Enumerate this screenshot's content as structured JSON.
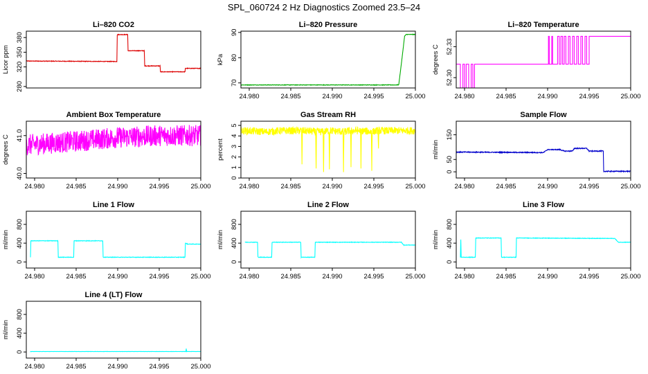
{
  "figure": {
    "title": "SPL_060724  2 Hz Diagnostics Zoomed 23.5–24"
  },
  "chart_data": [
    {
      "id": "co2",
      "type": "line",
      "title": "Li–820 CO2",
      "ylabel": "Licor ppm",
      "color": "#dd0000",
      "xlim": [
        24.979,
        25.0
      ],
      "ylim": [
        277,
        393
      ],
      "yticks": [
        280,
        320,
        350,
        380
      ],
      "ytick_labels": [
        "280",
        "320",
        "350",
        "380"
      ],
      "xticks": [],
      "xtick_labels": [],
      "series": [
        {
          "noise": 0.6,
          "jitter": 0.0,
          "x": [
            24.979,
            24.9899,
            24.98995,
            24.9912,
            24.99125,
            24.9932,
            24.99325,
            24.9951,
            24.99515,
            24.9981,
            24.99815,
            25.0
          ],
          "y": [
            332,
            331,
            386,
            386,
            353,
            353,
            322,
            322,
            310,
            310,
            317,
            317
          ]
        }
      ]
    },
    {
      "id": "pressure",
      "type": "line",
      "title": "Li–820 Pressure",
      "ylabel": "kPa",
      "color": "#00aa00",
      "xlim": [
        24.979,
        25.0
      ],
      "ylim": [
        68,
        90.5
      ],
      "yticks": [
        70,
        80,
        90
      ],
      "ytick_labels": [
        "70",
        "80",
        "90"
      ],
      "xticks": [
        24.98,
        24.985,
        24.99,
        24.995,
        25.0
      ],
      "xtick_labels": [
        "24.980",
        "24.985",
        "24.990",
        "24.995",
        "25.000"
      ],
      "series": [
        {
          "noise": 0.1,
          "jitter": 0.0,
          "x": [
            24.979,
            24.9979,
            24.998,
            24.9984,
            24.9987,
            24.9989,
            25.0
          ],
          "y": [
            69.2,
            69.2,
            69.3,
            80,
            88.5,
            89.2,
            89.2
          ]
        }
      ]
    },
    {
      "id": "temperature",
      "type": "line",
      "title": "Li–820 Temperature",
      "ylabel": "degrees C",
      "color": "#ff00ff",
      "xlim": [
        24.979,
        25.0
      ],
      "ylim": [
        52.29,
        52.345
      ],
      "yticks": [
        52.3,
        52.33
      ],
      "ytick_labels": [
        "52.30",
        "52.33"
      ],
      "xticks": [
        24.98,
        24.985,
        24.99,
        24.995,
        25.0
      ],
      "xtick_labels": [
        "24.980",
        "24.985",
        "24.990",
        "24.995",
        "25.000"
      ],
      "series": [
        {
          "step": true,
          "noise": 0.0,
          "jitter": 0.0,
          "x": [
            24.979,
            24.9795,
            24.9798,
            24.98,
            24.9802,
            24.9805,
            24.9808,
            24.981,
            24.9812,
            24.9901,
            24.9902,
            24.9905,
            24.9906,
            24.9912,
            24.9914,
            24.9916,
            24.9918,
            24.992,
            24.9922,
            24.9925,
            24.9927,
            24.993,
            24.9932,
            24.9935,
            24.9937,
            24.994,
            24.9942,
            24.9945,
            24.9947,
            24.995,
            25.0
          ],
          "y": [
            52.313,
            52.29,
            52.313,
            52.29,
            52.313,
            52.29,
            52.313,
            52.29,
            52.313,
            52.34,
            52.313,
            52.34,
            52.313,
            52.34,
            52.313,
            52.34,
            52.313,
            52.34,
            52.313,
            52.34,
            52.313,
            52.34,
            52.313,
            52.34,
            52.313,
            52.34,
            52.313,
            52.34,
            52.313,
            52.34,
            52.34
          ]
        }
      ]
    },
    {
      "id": "ambient",
      "type": "line",
      "title": "Ambient Box Temperature",
      "ylabel": "degrees C",
      "color": "#ff00ff",
      "xlim": [
        24.979,
        25.0
      ],
      "ylim": [
        39.88,
        41.38
      ],
      "yticks": [
        40.0,
        41.0
      ],
      "ytick_labels": [
        "40.0",
        "41.0"
      ],
      "xticks": [
        24.98,
        24.985,
        24.99,
        24.995,
        25.0
      ],
      "xtick_labels": [
        "24.980",
        "24.985",
        "24.990",
        "24.995",
        "25.000"
      ],
      "series": [
        {
          "noise": 0.28,
          "jitter": 0.0,
          "x": [
            24.979,
            24.985,
            24.99,
            24.995,
            25.0
          ],
          "y": [
            40.75,
            40.85,
            40.95,
            41.0,
            41.0
          ]
        }
      ]
    },
    {
      "id": "rh",
      "type": "line",
      "title": "Gas Stream RH",
      "ylabel": "percent",
      "color": "#ffff00",
      "xlim": [
        24.979,
        25.0
      ],
      "ylim": [
        0,
        5.4
      ],
      "yticks": [
        0,
        1,
        2,
        3,
        4,
        5
      ],
      "ytick_labels": [
        "0",
        "1",
        "2",
        "3",
        "4",
        "5"
      ],
      "xticks": [
        24.98,
        24.985,
        24.99,
        24.995,
        25.0
      ],
      "xtick_labels": [
        "24.980",
        "24.985",
        "24.990",
        "24.995",
        "25.000"
      ],
      "series": [
        {
          "noise": 0.35,
          "jitter": 0.0,
          "x": [
            24.979,
            24.982,
            24.984,
            24.9863,
            24.98635,
            24.9864,
            24.988,
            24.98805,
            24.9881,
            24.9889,
            24.98895,
            24.989,
            24.9896,
            24.98965,
            24.9897,
            24.9913,
            24.99135,
            24.9914,
            24.9922,
            24.99225,
            24.9923,
            24.9934,
            24.99345,
            24.9935,
            24.9947,
            24.99475,
            24.9948,
            24.9955,
            24.99555,
            24.9956,
            25.0
          ],
          "y": [
            4.5,
            4.4,
            4.5,
            4.5,
            1.5,
            4.5,
            4.4,
            0.8,
            4.4,
            4.4,
            0.4,
            4.4,
            4.5,
            1.0,
            4.5,
            4.4,
            0.6,
            4.4,
            4.5,
            1.2,
            4.5,
            4.5,
            0.8,
            4.5,
            4.4,
            0.9,
            4.4,
            4.5,
            2.8,
            4.5,
            4.5
          ]
        }
      ]
    },
    {
      "id": "sample",
      "type": "line",
      "title": "Sample Flow",
      "ylabel": "ml/min",
      "color": "#0000cc",
      "xlim": [
        24.979,
        25.0
      ],
      "ylim": [
        -25,
        205
      ],
      "yticks": [
        0,
        50,
        150
      ],
      "ytick_labels": [
        "0",
        "50",
        "150"
      ],
      "xticks": [
        24.98,
        24.985,
        24.99,
        24.995,
        25.0
      ],
      "xtick_labels": [
        "24.980",
        "24.985",
        "24.990",
        "24.995",
        "25.000"
      ],
      "series": [
        {
          "noise": 1.8,
          "jitter": 0.0,
          "x": [
            24.979,
            24.9895,
            24.99,
            24.9915,
            24.992,
            24.993,
            24.9932,
            24.9947,
            24.995,
            24.9967,
            24.99675,
            25.0
          ],
          "y": [
            80,
            78,
            90,
            90,
            84,
            84,
            95,
            95,
            84,
            84,
            2,
            2
          ]
        }
      ]
    },
    {
      "id": "line1",
      "type": "line",
      "title": "Line 1 Flow",
      "ylabel": "ml/min",
      "color": "#00ffff",
      "xlim": [
        24.979,
        25.0
      ],
      "ylim": [
        -130,
        1080
      ],
      "yticks": [
        0,
        400,
        800
      ],
      "ytick_labels": [
        "0",
        "400",
        "800"
      ],
      "xticks": [
        24.98,
        24.985,
        24.99,
        24.995,
        25.0
      ],
      "xtick_labels": [
        "24.980",
        "24.985",
        "24.990",
        "24.995",
        "25.000"
      ],
      "series": [
        {
          "noise": 5,
          "jitter": 0.0,
          "x": [
            24.9795,
            24.97955,
            24.9828,
            24.98285,
            24.9847,
            24.98475,
            24.9882,
            24.98825,
            24.9981,
            24.99815,
            24.9984,
            25.0
          ],
          "y": [
            100,
            450,
            450,
            100,
            100,
            450,
            450,
            100,
            100,
            400,
            380,
            380
          ]
        }
      ]
    },
    {
      "id": "line2",
      "type": "line",
      "title": "Line 2 Flow",
      "ylabel": "ml/min",
      "color": "#00ffff",
      "xlim": [
        24.979,
        25.0
      ],
      "ylim": [
        -130,
        1080
      ],
      "yticks": [
        0,
        400,
        800
      ],
      "ytick_labels": [
        "0",
        "400",
        "800"
      ],
      "xticks": [
        24.98,
        24.985,
        24.99,
        24.995,
        25.0
      ],
      "xtick_labels": [
        "24.980",
        "24.985",
        "24.990",
        "24.995",
        "25.000"
      ],
      "series": [
        {
          "noise": 5,
          "jitter": 0.0,
          "x": [
            24.9795,
            24.981,
            24.98105,
            24.9827,
            24.98275,
            24.9862,
            24.98625,
            24.9879,
            24.98795,
            24.9983,
            24.9986,
            25.0
          ],
          "y": [
            420,
            420,
            100,
            100,
            420,
            420,
            100,
            100,
            420,
            420,
            360,
            360
          ]
        }
      ]
    },
    {
      "id": "line3",
      "type": "line",
      "title": "Line 3 Flow",
      "ylabel": "ml/min",
      "color": "#00ffff",
      "xlim": [
        24.979,
        25.0
      ],
      "ylim": [
        -130,
        1080
      ],
      "yticks": [
        0,
        400,
        800
      ],
      "ytick_labels": [
        "0",
        "400",
        "800"
      ],
      "xticks": [
        24.98,
        24.985,
        24.99,
        24.995,
        25.0
      ],
      "xtick_labels": [
        "24.980",
        "24.985",
        "24.990",
        "24.995",
        "25.000"
      ],
      "series": [
        {
          "noise": 5,
          "jitter": 0.0,
          "x": [
            24.9795,
            24.97955,
            24.9796,
            24.9813,
            24.98135,
            24.9844,
            24.98445,
            24.9862,
            24.98625,
            24.9981,
            24.9985,
            25.0
          ],
          "y": [
            100,
            480,
            100,
            100,
            510,
            510,
            100,
            100,
            510,
            500,
            420,
            420
          ]
        }
      ]
    },
    {
      "id": "line4",
      "type": "line",
      "title": "Line 4 (LT) Flow",
      "ylabel": "ml/min",
      "color": "#00ffff",
      "xlim": [
        24.979,
        25.0
      ],
      "ylim": [
        -130,
        1080
      ],
      "yticks": [
        0,
        400,
        800
      ],
      "ytick_labels": [
        "0",
        "400",
        "800"
      ],
      "xticks": [
        24.98,
        24.985,
        24.99,
        24.995,
        25.0
      ],
      "xtick_labels": [
        "24.980",
        "24.985",
        "24.990",
        "24.995",
        "25.000"
      ],
      "series": [
        {
          "noise": 2,
          "jitter": 0.0,
          "x": [
            24.9795,
            24.9982,
            24.99825,
            24.9983,
            24.99835,
            25.0
          ],
          "y": [
            10,
            10,
            70,
            10,
            10,
            10
          ]
        }
      ]
    }
  ]
}
